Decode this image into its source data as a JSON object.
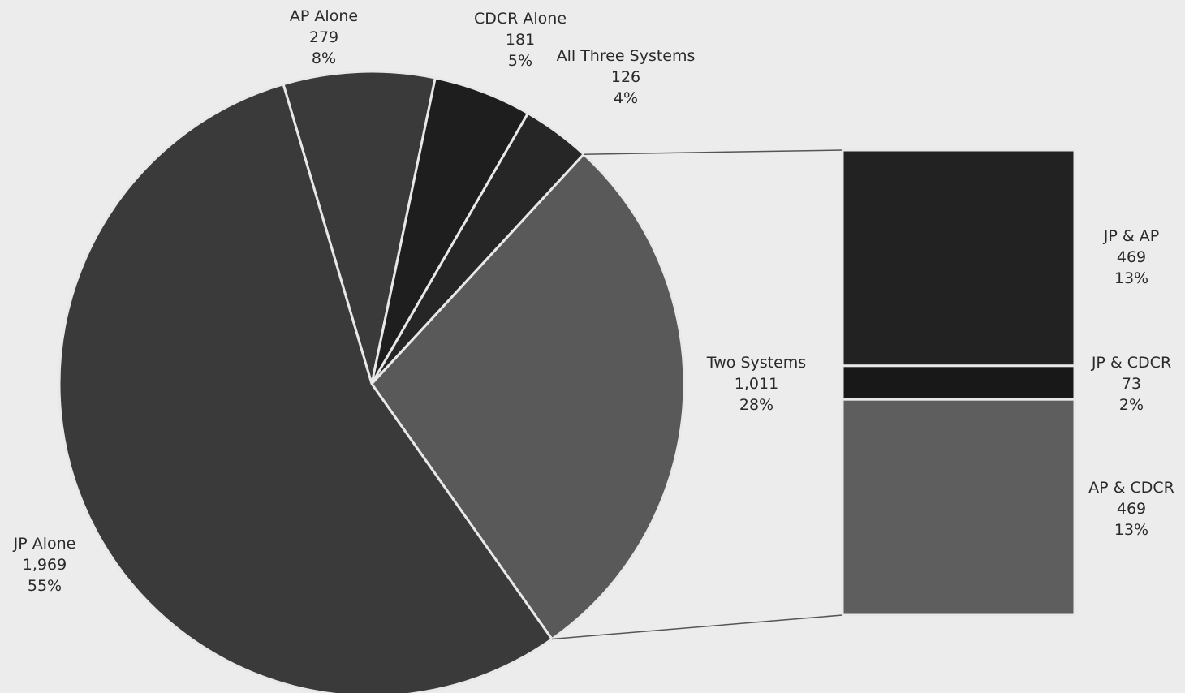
{
  "chart_data": {
    "type": "pie",
    "title": "",
    "slices": [
      {
        "label": "JP Alone",
        "value": 1969,
        "value_text": "1,969",
        "percent_text": "55%",
        "color": "#3a3a3a"
      },
      {
        "label": "AP Alone",
        "value": 279,
        "value_text": "279",
        "percent_text": "8%",
        "color": "#3a3a3a"
      },
      {
        "label": "CDCR Alone",
        "value": 181,
        "value_text": "181",
        "percent_text": "5%",
        "color": "#1e1e1e"
      },
      {
        "label": "All Three Systems",
        "value": 126,
        "value_text": "126",
        "percent_text": "4%",
        "color": "#262626"
      },
      {
        "label": "Two Systems",
        "value": 1011,
        "value_text": "1,011",
        "percent_text": "28%",
        "color": "#595959"
      }
    ],
    "breakdown": {
      "of_slice": "Two Systems",
      "segments": [
        {
          "label": "JP & AP",
          "value": 469,
          "value_text": "469",
          "percent_text": "13%",
          "color": "#222222"
        },
        {
          "label": "JP & CDCR",
          "value": 73,
          "value_text": "73",
          "percent_text": "2%",
          "color": "#181818"
        },
        {
          "label": "AP & CDCR",
          "value": 469,
          "value_text": "469",
          "percent_text": "13%",
          "color": "#5e5e5e"
        }
      ]
    },
    "colors": {
      "separator": "#e8e8e8",
      "connector": "#555555",
      "text": "#2a2a2a",
      "background": "#ececec"
    }
  }
}
